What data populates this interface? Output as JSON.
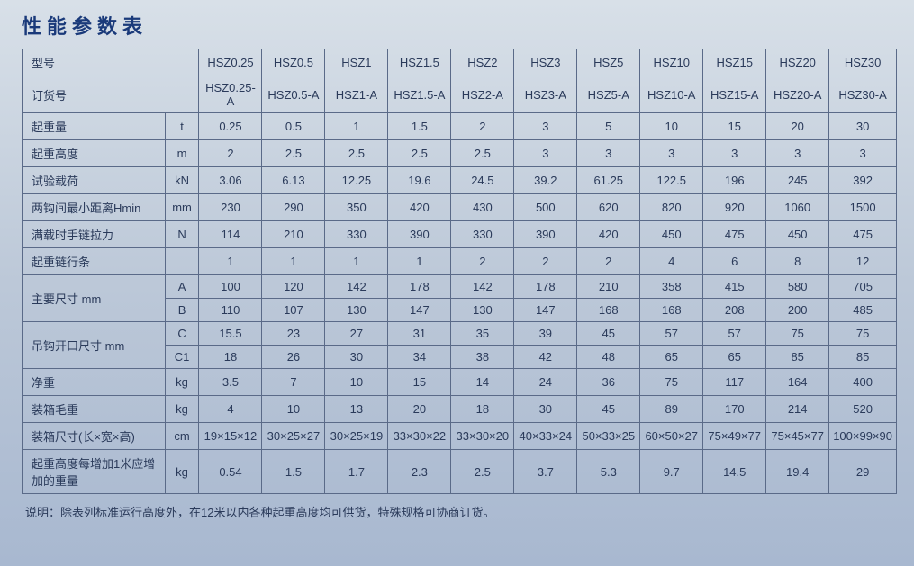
{
  "title": "性能参数表",
  "note": "说明：除表列标准运行高度外，在12米以内各种起重高度均可供货，特殊规格可协商订货。",
  "columns_count": 11,
  "row_model": [
    "型号",
    "HSZ0.25",
    "HSZ0.5",
    "HSZ1",
    "HSZ1.5",
    "HSZ2",
    "HSZ3",
    "HSZ5",
    "HSZ10",
    "HSZ15",
    "HSZ20",
    "HSZ30"
  ],
  "row_order": [
    "订货号",
    "HSZ0.25-A",
    "HSZ0.5-A",
    "HSZ1-A",
    "HSZ1.5-A",
    "HSZ2-A",
    "HSZ3-A",
    "HSZ5-A",
    "HSZ10-A",
    "HSZ15-A",
    "HSZ20-A",
    "HSZ30-A"
  ],
  "simple_rows": [
    {
      "label": "起重量",
      "unit": "t",
      "vals": [
        "0.25",
        "0.5",
        "1",
        "1.5",
        "2",
        "3",
        "5",
        "10",
        "15",
        "20",
        "30"
      ]
    },
    {
      "label": "起重高度",
      "unit": "m",
      "vals": [
        "2",
        "2.5",
        "2.5",
        "2.5",
        "2.5",
        "3",
        "3",
        "3",
        "3",
        "3",
        "3"
      ]
    },
    {
      "label": "试验载荷",
      "unit": "kN",
      "vals": [
        "3.06",
        "6.13",
        "12.25",
        "19.6",
        "24.5",
        "39.2",
        "61.25",
        "122.5",
        "196",
        "245",
        "392"
      ]
    },
    {
      "label": "两钩间最小距离Hmin",
      "unit": "mm",
      "vals": [
        "230",
        "290",
        "350",
        "420",
        "430",
        "500",
        "620",
        "820",
        "920",
        "1060",
        "1500"
      ]
    },
    {
      "label": "满载时手链拉力",
      "unit": "N",
      "vals": [
        "114",
        "210",
        "330",
        "390",
        "330",
        "390",
        "420",
        "450",
        "475",
        "450",
        "475"
      ]
    },
    {
      "label": "起重链行条",
      "unit": "",
      "vals": [
        "1",
        "1",
        "1",
        "1",
        "2",
        "2",
        "2",
        "4",
        "6",
        "8",
        "12"
      ]
    }
  ],
  "main_size": {
    "label": "主要尺寸  mm",
    "rows": [
      {
        "sub": "A",
        "vals": [
          "100",
          "120",
          "142",
          "178",
          "142",
          "178",
          "210",
          "358",
          "415",
          "580",
          "705"
        ]
      },
      {
        "sub": "B",
        "vals": [
          "110",
          "107",
          "130",
          "147",
          "130",
          "147",
          "168",
          "168",
          "208",
          "200",
          "485"
        ]
      }
    ]
  },
  "hook_size": {
    "label": "吊钩开口尺寸  mm",
    "rows": [
      {
        "sub": "C",
        "vals": [
          "15.5",
          "23",
          "27",
          "31",
          "35",
          "39",
          "45",
          "57",
          "57",
          "75",
          "75"
        ]
      },
      {
        "sub": "C1",
        "vals": [
          "18",
          "26",
          "30",
          "34",
          "38",
          "42",
          "48",
          "65",
          "65",
          "85",
          "85"
        ]
      }
    ]
  },
  "tail_rows": [
    {
      "label": "净重",
      "unit": "kg",
      "vals": [
        "3.5",
        "7",
        "10",
        "15",
        "14",
        "24",
        "36",
        "75",
        "117",
        "164",
        "400"
      ]
    },
    {
      "label": "装箱毛重",
      "unit": "kg",
      "vals": [
        "4",
        "10",
        "13",
        "20",
        "18",
        "30",
        "45",
        "89",
        "170",
        "214",
        "520"
      ]
    },
    {
      "label": "装箱尺寸(长×宽×高)",
      "unit": "cm",
      "vals": [
        "19×15×12",
        "30×25×27",
        "30×25×19",
        "33×30×22",
        "33×30×20",
        "40×33×24",
        "50×33×25",
        "60×50×27",
        "75×49×77",
        "75×45×77",
        "100×99×90"
      ]
    },
    {
      "label": "起重高度每增加1米应增加的重量",
      "unit": "kg",
      "vals": [
        "0.54",
        "1.5",
        "1.7",
        "2.3",
        "2.5",
        "3.7",
        "5.3",
        "9.7",
        "14.5",
        "19.4",
        "29"
      ]
    }
  ]
}
